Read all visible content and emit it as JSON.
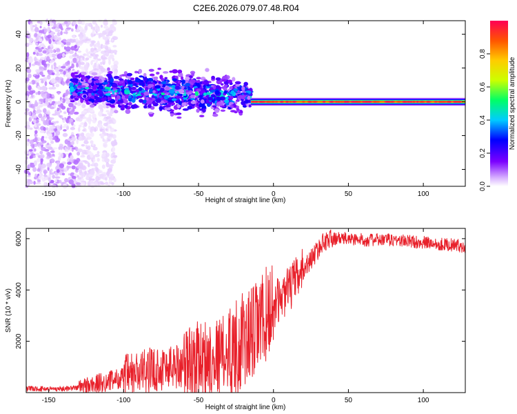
{
  "figure_title": "C2E6.2026.079.07.48.R04",
  "chart_data": [
    {
      "type": "heatmap",
      "title": "C2E6.2026.079.07.48.R04",
      "xlabel": "Height of straight line (km)",
      "ylabel": "Frequency (Hz)",
      "xlim": [
        -165,
        128
      ],
      "ylim": [
        -50,
        48
      ],
      "x_ticks": [
        -150,
        -100,
        -50,
        0,
        50,
        100
      ],
      "y_ticks": [
        -40,
        -20,
        0,
        20,
        40
      ],
      "colorbar": {
        "label": "Normalized spectral amplitude",
        "range": [
          0,
          1
        ],
        "ticks": [
          0.0,
          0.2,
          0.4,
          0.6,
          0.8
        ],
        "tick_labels": [
          "0.0",
          "0.2",
          "0.4",
          "0.6",
          "0.8"
        ],
        "colormap": [
          "#ffffff",
          "#d9b3ff",
          "#7b00ff",
          "#0000ff",
          "#00ccff",
          "#00ff66",
          "#ccff00",
          "#ffcc00",
          "#ff5500",
          "#ff0055"
        ]
      },
      "features": {
        "noise_region_x": [
          -165,
          -130
        ],
        "scatter_band": {
          "x": [
            -135,
            -15
          ],
          "freq_start": 8,
          "freq_end": 3,
          "amplitude": 0.35
        },
        "tone_line": {
          "x": [
            -15,
            128
          ],
          "freq": 0,
          "amplitude": 0.9
        }
      }
    },
    {
      "type": "line",
      "xlabel": "Height of straight line (km)",
      "ylabel": "SNR (10 * v/v)",
      "xlim": [
        -165,
        128
      ],
      "ylim": [
        0,
        6400
      ],
      "x_ticks": [
        -150,
        -100,
        -50,
        0,
        50,
        100
      ],
      "y_ticks": [
        2000,
        4000,
        6000
      ],
      "color": "#e8202a",
      "series": [
        {
          "name": "SNR",
          "x": [
            -165,
            -140,
            -130,
            -120,
            -110,
            -100,
            -90,
            -80,
            -70,
            -60,
            -50,
            -40,
            -30,
            -20,
            -15,
            -10,
            -5,
            0,
            5,
            10,
            20,
            30,
            35,
            40,
            50,
            60,
            70,
            80,
            90,
            100,
            110,
            120,
            128
          ],
          "y": [
            150,
            150,
            200,
            300,
            450,
            600,
            750,
            900,
            1000,
            1100,
            1300,
            1400,
            1600,
            2000,
            2200,
            2600,
            3000,
            3400,
            3700,
            4000,
            4800,
            5600,
            5950,
            6000,
            6000,
            5950,
            5950,
            5950,
            5900,
            5850,
            5800,
            5750,
            5700
          ]
        }
      ],
      "noise_amplitude": [
        {
          "x": [
            -165,
            -130
          ],
          "amp": 100
        },
        {
          "x": [
            -130,
            -100
          ],
          "amp": 400
        },
        {
          "x": [
            -100,
            -60
          ],
          "amp": 900
        },
        {
          "x": [
            -60,
            -30
          ],
          "amp": 1500
        },
        {
          "x": [
            -30,
            0
          ],
          "amp": 1900
        },
        {
          "x": [
            0,
            20
          ],
          "amp": 900
        },
        {
          "x": [
            20,
            40
          ],
          "amp": 400
        },
        {
          "x": [
            40,
            128
          ],
          "amp": 250
        }
      ]
    }
  ]
}
